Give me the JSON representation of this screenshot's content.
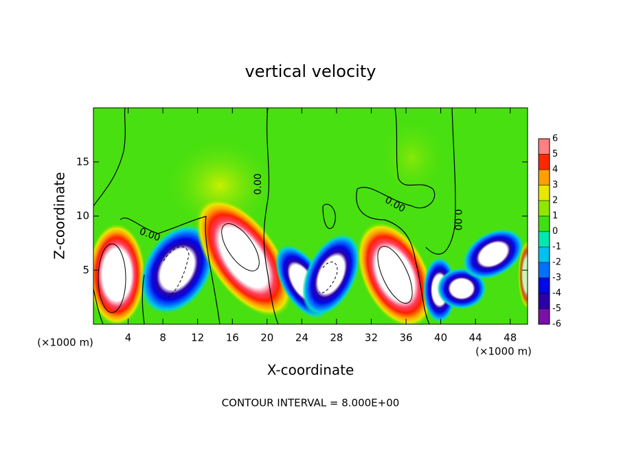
{
  "chart_data": {
    "type": "contour",
    "title": "vertical velocity",
    "x_label": "X-coordinate",
    "y_label": "Z-coordinate",
    "x_unit": "(×1000 m)",
    "x_unit_right": "(×1000 m)",
    "footer": "CONTOUR INTERVAL = 8.000E+00",
    "contour_labels": [
      "0.00",
      "0.00",
      "0.00",
      "0.00"
    ],
    "xlim": [
      0,
      50
    ],
    "ylim": [
      0,
      20
    ],
    "xticks": [
      4,
      8,
      12,
      16,
      20,
      24,
      28,
      32,
      36,
      40,
      44,
      48
    ],
    "yticks": [
      5,
      10,
      15
    ],
    "colorbar": {
      "ticks": [
        -6,
        -5,
        -4,
        -3,
        -2,
        -1,
        0,
        1,
        2,
        3,
        4,
        5,
        6
      ],
      "colors": [
        "#7a10a8",
        "#2a00a8",
        "#0008e8",
        "#0070ff",
        "#00c0f0",
        "#00e8b0",
        "#40e010",
        "#90e800",
        "#e8e800",
        "#ffa000",
        "#ff2800",
        "#ff8080"
      ]
    }
  }
}
